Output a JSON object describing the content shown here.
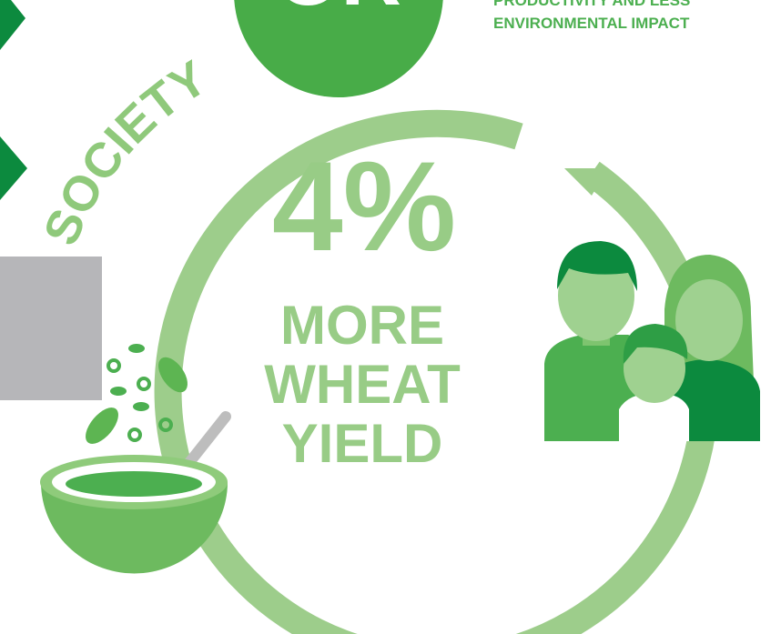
{
  "badge": "OR",
  "side_text": [
    "PRODUCTIVITY AND LESS",
    "ENVIRONMENTAL IMPACT"
  ],
  "ring_label": "SOCIETY",
  "stat": "4%",
  "stat_caption": [
    "MORE",
    "WHEAT",
    "YIELD"
  ]
}
